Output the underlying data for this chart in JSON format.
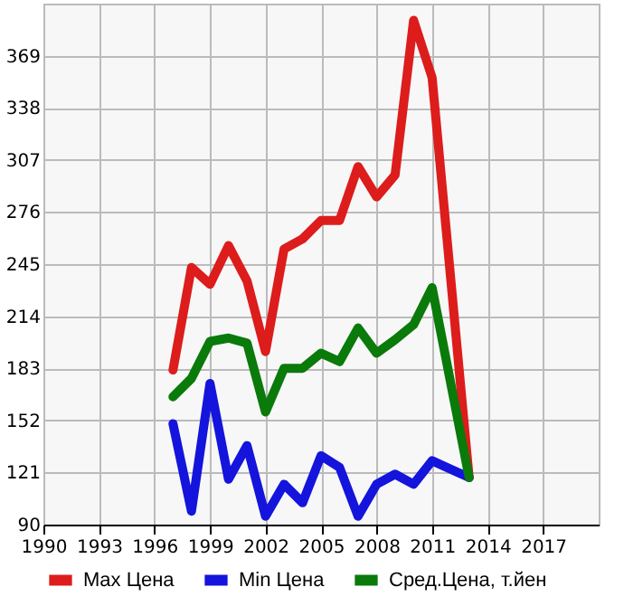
{
  "chart_data": {
    "type": "line",
    "x": [
      1997,
      1998,
      1999,
      2000,
      2001,
      2002,
      2003,
      2004,
      2005,
      2006,
      2007,
      2008,
      2009,
      2010,
      2011,
      2013
    ],
    "series": [
      {
        "name": "Max Цена",
        "color": "#dd1c1c",
        "values": [
          182,
          243,
          233,
          256,
          235,
          193,
          254,
          260,
          271,
          271,
          303,
          285,
          298,
          390,
          356,
          118
        ]
      },
      {
        "name": "Min Цена",
        "color": "#1414dd",
        "values": [
          150,
          98,
          174,
          117,
          137,
          95,
          114,
          103,
          131,
          124,
          95,
          114,
          120,
          114,
          128,
          118
        ]
      },
      {
        "name": "Сред.Цена, т.йен",
        "color": "#0a7a0a",
        "values": [
          166,
          177,
          199,
          201,
          198,
          157,
          183,
          183,
          192,
          187,
          207,
          192,
          200,
          209,
          231,
          118
        ]
      }
    ],
    "xlim": [
      1990,
      2020
    ],
    "xticks": [
      1990,
      1993,
      1996,
      1999,
      2002,
      2005,
      2008,
      2011,
      2014,
      2017
    ],
    "ylim": [
      90,
      400
    ],
    "yticks": [
      90,
      121,
      152,
      183,
      214,
      245,
      276,
      307,
      338,
      369
    ],
    "grid": true,
    "legend": "bottom",
    "marker": "none",
    "line_style": "solid"
  }
}
